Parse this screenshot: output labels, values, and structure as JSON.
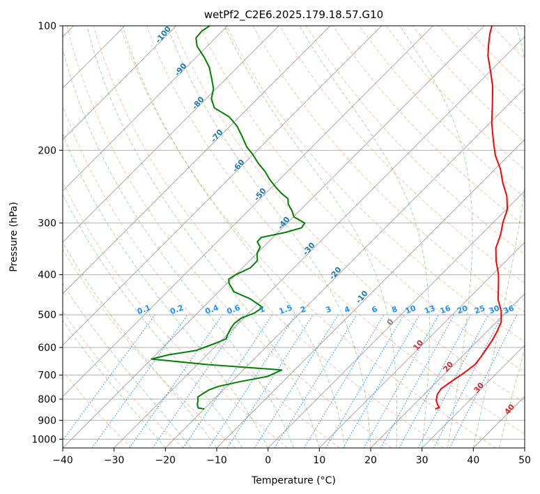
{
  "chart_data": {
    "type": "line",
    "title": "wetPf2_C2E6.2025.179.18.57.G10",
    "xlabel": "Temperature (°C)",
    "ylabel": "Pressure (hPa)",
    "xlim": [
      -40,
      50
    ],
    "ylim": [
      1050,
      100
    ],
    "y_scale": "log",
    "grid": true,
    "x_ticks": [
      "−40",
      "−30",
      "−20",
      "−10",
      "0",
      "10",
      "20",
      "30",
      "40",
      "50"
    ],
    "y_ticks": [
      "100",
      "200",
      "300",
      "400",
      "500",
      "600",
      "700",
      "800",
      "900",
      "1000"
    ],
    "isotherm_skew": true,
    "line_colors": {
      "temperature": "#ff0000",
      "dewpoint": "#008000",
      "dry_adiabat": "#ff7f50",
      "moist_adiabat": "#2ca02c",
      "mixing_ratio": "#1e90ff",
      "isotherm": "#999999"
    },
    "series": [
      {
        "color": "#ff0000",
        "points": [
          [
            25,
            845
          ],
          [
            25.5,
            838
          ],
          [
            24.6,
            825
          ],
          [
            23.5,
            805
          ],
          [
            22.6,
            780
          ],
          [
            22.2,
            755
          ],
          [
            22.8,
            725
          ],
          [
            23.5,
            695
          ],
          [
            24.1,
            660
          ],
          [
            23.7,
            628
          ],
          [
            23.2,
            600
          ],
          [
            22.7,
            575
          ],
          [
            22.0,
            550
          ],
          [
            20.9,
            520
          ],
          [
            18.8,
            490
          ],
          [
            16.0,
            460
          ],
          [
            13.7,
            430
          ],
          [
            11.2,
            400
          ],
          [
            8.0,
            370
          ],
          [
            5.5,
            345
          ],
          [
            3.8,
            320
          ],
          [
            1.8,
            298
          ],
          [
            0.2,
            278
          ],
          [
            -2.5,
            258
          ],
          [
            -5.8,
            240
          ],
          [
            -9.0,
            222
          ],
          [
            -12.6,
            206
          ],
          [
            -15.8,
            190
          ],
          [
            -19.6,
            172
          ],
          [
            -23.1,
            155
          ],
          [
            -26.6,
            140
          ],
          [
            -30.2,
            128
          ],
          [
            -33.5,
            118
          ],
          [
            -35.8,
            110
          ],
          [
            -37.5,
            104
          ],
          [
            -38.5,
            100
          ]
        ]
      },
      {
        "color": "#008000",
        "points": [
          [
            -20,
            845
          ],
          [
            -21.4,
            840
          ],
          [
            -22.2,
            825
          ],
          [
            -22.8,
            808
          ],
          [
            -23.6,
            790
          ],
          [
            -23.2,
            775
          ],
          [
            -22.8,
            760
          ],
          [
            -21.6,
            745
          ],
          [
            -18.2,
            725
          ],
          [
            -14.0,
            705
          ],
          [
            -12.5,
            680
          ],
          [
            -28,
            660
          ],
          [
            -40,
            640
          ],
          [
            -37.5,
            625
          ],
          [
            -33,
            610
          ],
          [
            -32,
            600
          ],
          [
            -30.5,
            585
          ],
          [
            -29.4,
            572
          ],
          [
            -30,
            556
          ],
          [
            -30.5,
            540
          ],
          [
            -30.8,
            525
          ],
          [
            -30.5,
            510
          ],
          [
            -28.9,
            495
          ],
          [
            -28.4,
            480
          ],
          [
            -32.4,
            458
          ],
          [
            -37,
            440
          ],
          [
            -39.6,
            420
          ],
          [
            -40.5,
            410
          ],
          [
            -40.0,
            400
          ],
          [
            -38.5,
            385
          ],
          [
            -38.5,
            370
          ],
          [
            -40.0,
            355
          ],
          [
            -40.6,
            343
          ],
          [
            -42.2,
            333
          ],
          [
            -42.3,
            325
          ],
          [
            -38.5,
            316
          ],
          [
            -36.3,
            308
          ],
          [
            -36.6,
            300
          ],
          [
            -39.9,
            290
          ],
          [
            -41.5,
            280
          ],
          [
            -43.5,
            270
          ],
          [
            -44.6,
            262
          ],
          [
            -47,
            254
          ],
          [
            -49.4,
            245
          ],
          [
            -52.0,
            235
          ],
          [
            -54.4,
            225
          ],
          [
            -57.3,
            215
          ],
          [
            -60.0,
            205
          ],
          [
            -62.8,
            196
          ],
          [
            -65.7,
            185
          ],
          [
            -68.6,
            175
          ],
          [
            -72.0,
            166
          ],
          [
            -76.6,
            158
          ],
          [
            -79.0,
            150
          ],
          [
            -80.5,
            142
          ],
          [
            -82.9,
            134
          ],
          [
            -85.5,
            126
          ],
          [
            -88.5,
            119
          ],
          [
            -92.0,
            112
          ],
          [
            -93.8,
            107
          ],
          [
            -94.0,
            103
          ],
          [
            -93.5,
            100
          ]
        ]
      }
    ],
    "mixing_ratio_labels": [
      "0.1",
      "0.2",
      "0.4",
      "0.6",
      "1",
      "1.5",
      "2",
      "3",
      "4",
      "6",
      "8",
      "10",
      "13",
      "16",
      "20",
      "25",
      "30",
      "36"
    ],
    "dry_adiabat_labels": [
      "-100",
      "-90",
      "-80",
      "-70",
      "-60",
      "-50",
      "-40",
      "-30",
      "-20",
      "-10",
      "0"
    ],
    "moist_adiabat_labels": [
      "10",
      "20",
      "30",
      "40"
    ]
  }
}
